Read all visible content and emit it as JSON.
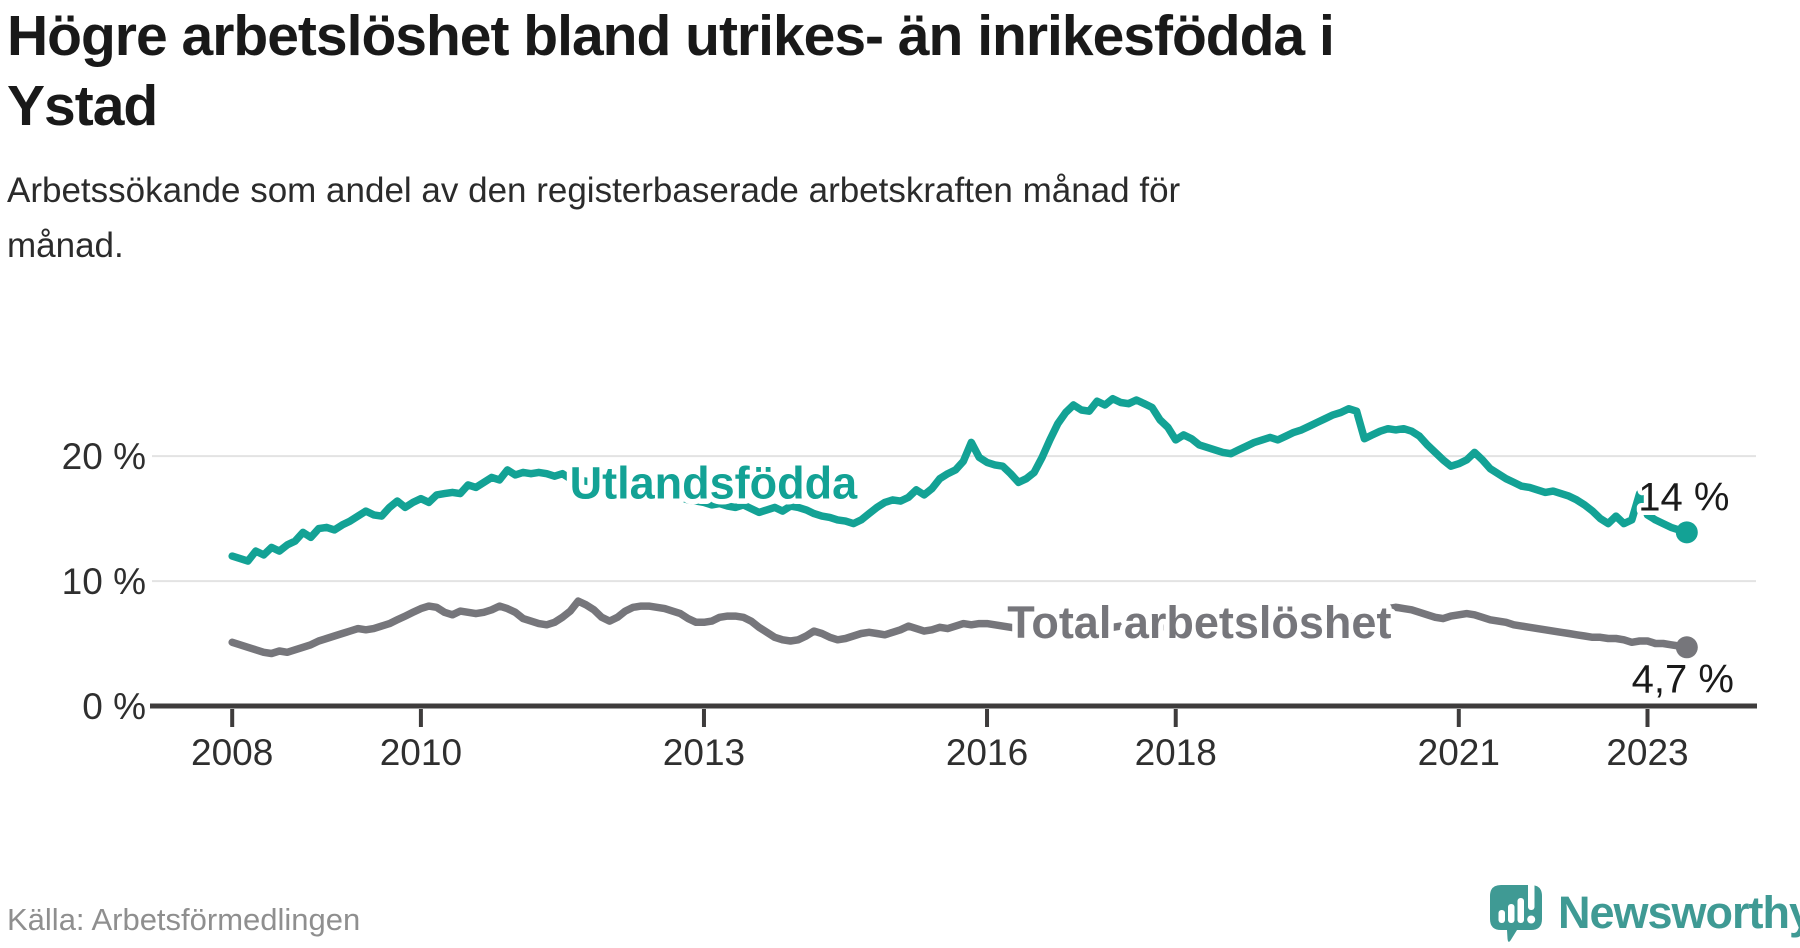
{
  "title": {
    "lines": [
      "Högre arbetslöshet bland utrikes- än inrikesfödda i",
      "Ystad"
    ]
  },
  "subtitle": {
    "lines": [
      "Arbetssökande som andel av den registerbaserade arbetskraften månad för",
      "månad."
    ]
  },
  "source": "Källa: Arbetsförmedlingen",
  "brand": {
    "name": "Newsworthy",
    "color": "#3f9a94"
  },
  "colors": {
    "foreign_line": "#13a295",
    "total_line": "#76767b",
    "axis": "#3e3c3c",
    "grid": "#e3e3e3",
    "tick_text": "#2f2f2f",
    "end_label_text": "#1a1a1a",
    "title_text": "#191919",
    "source_text": "#8f8f8f"
  },
  "chart_data": {
    "type": "line",
    "x_start_year": 2008,
    "x_months_per_step": 1,
    "xlim": [
      2007.15,
      2024.15
    ],
    "ylim": [
      0,
      29.3
    ],
    "grid": "horizontal",
    "legend": "inline-labels",
    "yticks": [
      {
        "value": 0,
        "label": "0 %"
      },
      {
        "value": 10,
        "label": "10 %"
      },
      {
        "value": 20,
        "label": "20 %"
      }
    ],
    "xticks": [
      {
        "value": 2008,
        "label": "2008"
      },
      {
        "value": 2010,
        "label": "2010"
      },
      {
        "value": 2013,
        "label": "2013"
      },
      {
        "value": 2016,
        "label": "2016"
      },
      {
        "value": 2018,
        "label": "2018"
      },
      {
        "value": 2021,
        "label": "2021"
      },
      {
        "value": 2023,
        "label": "2023"
      }
    ],
    "series": [
      {
        "id": "utlandsfodda",
        "name": "Utlandsfödda",
        "color": "#13a295",
        "label": {
          "text": "Utlandsfödda",
          "x": 2013.1,
          "y": 17.9
        },
        "end_label": "14 %",
        "end_label_offset": [
          -3,
          -36
        ],
        "values": [
          12.0,
          11.8,
          11.6,
          12.4,
          12.1,
          12.7,
          12.4,
          12.9,
          13.2,
          13.9,
          13.5,
          14.2,
          14.3,
          14.1,
          14.5,
          14.8,
          15.2,
          15.6,
          15.3,
          15.2,
          15.9,
          16.4,
          15.9,
          16.3,
          16.6,
          16.3,
          16.9,
          17.0,
          17.1,
          17.0,
          17.7,
          17.5,
          17.9,
          18.3,
          18.1,
          18.9,
          18.5,
          18.7,
          18.6,
          18.7,
          18.6,
          18.4,
          18.6,
          18.2,
          18.1,
          18.0,
          17.9,
          17.7,
          17.4,
          17.7,
          17.9,
          17.6,
          17.4,
          17.5,
          17.2,
          17.1,
          16.9,
          16.7,
          16.5,
          16.4,
          16.3,
          16.1,
          16.2,
          16.0,
          15.9,
          16.1,
          15.8,
          15.5,
          15.7,
          15.9,
          15.6,
          16.0,
          15.9,
          15.7,
          15.4,
          15.2,
          15.1,
          14.9,
          14.8,
          14.6,
          14.9,
          15.4,
          15.9,
          16.3,
          16.5,
          16.4,
          16.7,
          17.3,
          16.9,
          17.4,
          18.2,
          18.6,
          18.9,
          19.6,
          21.1,
          19.9,
          19.5,
          19.3,
          19.2,
          18.6,
          17.9,
          18.2,
          18.7,
          19.9,
          21.3,
          22.6,
          23.5,
          24.1,
          23.7,
          23.6,
          24.4,
          24.1,
          24.6,
          24.3,
          24.2,
          24.5,
          24.2,
          23.9,
          22.9,
          22.3,
          21.3,
          21.7,
          21.4,
          20.9,
          20.7,
          20.5,
          20.3,
          20.2,
          20.5,
          20.8,
          21.1,
          21.3,
          21.5,
          21.3,
          21.6,
          21.9,
          22.1,
          22.4,
          22.7,
          23.0,
          23.3,
          23.5,
          23.8,
          23.6,
          21.4,
          21.7,
          22.0,
          22.2,
          22.1,
          22.2,
          22.0,
          21.6,
          20.9,
          20.3,
          19.7,
          19.2,
          19.4,
          19.7,
          20.3,
          19.7,
          19.0,
          18.6,
          18.2,
          17.9,
          17.6,
          17.5,
          17.3,
          17.1,
          17.2,
          17.0,
          16.8,
          16.5,
          16.1,
          15.6,
          15.0,
          14.6,
          15.2,
          14.6,
          14.9,
          17.0,
          15.3,
          14.9,
          14.6,
          14.3,
          14.1,
          13.9
        ]
      },
      {
        "id": "total",
        "name": "Total arbetslöshet",
        "color": "#76767b",
        "label": {
          "text": "Total arbetslöshet",
          "x": 2018.25,
          "y": 6.72
        },
        "end_label": "4,7 %",
        "end_label_offset": [
          -4,
          31
        ],
        "values": [
          5.1,
          4.9,
          4.7,
          4.5,
          4.3,
          4.2,
          4.4,
          4.3,
          4.5,
          4.7,
          4.9,
          5.2,
          5.4,
          5.6,
          5.8,
          6.0,
          6.2,
          6.1,
          6.2,
          6.4,
          6.6,
          6.9,
          7.2,
          7.5,
          7.8,
          8.0,
          7.9,
          7.5,
          7.3,
          7.6,
          7.5,
          7.4,
          7.5,
          7.7,
          8.0,
          7.8,
          7.5,
          7.0,
          6.8,
          6.6,
          6.5,
          6.7,
          7.1,
          7.6,
          8.4,
          8.1,
          7.7,
          7.1,
          6.8,
          7.1,
          7.6,
          7.9,
          8.0,
          8.0,
          7.9,
          7.8,
          7.6,
          7.4,
          7.0,
          6.7,
          6.7,
          6.8,
          7.1,
          7.2,
          7.2,
          7.1,
          6.8,
          6.3,
          5.9,
          5.5,
          5.3,
          5.2,
          5.3,
          5.6,
          6.0,
          5.8,
          5.5,
          5.3,
          5.4,
          5.6,
          5.8,
          5.9,
          5.8,
          5.7,
          5.9,
          6.1,
          6.4,
          6.2,
          6.0,
          6.1,
          6.3,
          6.2,
          6.4,
          6.6,
          6.5,
          6.6,
          6.6,
          6.5,
          6.4,
          6.3,
          6.2,
          6.3,
          6.4,
          6.5,
          6.6,
          6.6,
          6.7,
          6.7,
          6.6,
          6.5,
          6.4,
          6.4,
          6.3,
          6.4,
          6.5,
          6.6,
          6.6,
          6.5,
          6.4,
          6.3,
          6.2,
          6.1,
          6.0,
          6.0,
          5.9,
          6.0,
          6.1,
          6.2,
          6.1,
          6.0,
          5.9,
          5.9,
          6.0,
          6.1,
          6.2,
          6.3,
          6.4,
          6.5,
          6.7,
          6.8,
          6.9,
          7.0,
          7.1,
          7.2,
          7.1,
          7.2,
          7.5,
          7.8,
          7.9,
          7.8,
          7.7,
          7.5,
          7.3,
          7.1,
          7.0,
          7.2,
          7.3,
          7.4,
          7.3,
          7.1,
          6.9,
          6.8,
          6.7,
          6.5,
          6.4,
          6.3,
          6.2,
          6.1,
          6.0,
          5.9,
          5.8,
          5.7,
          5.6,
          5.5,
          5.5,
          5.4,
          5.4,
          5.3,
          5.1,
          5.2,
          5.2,
          5.0,
          5.0,
          4.9,
          4.8,
          4.7
        ]
      }
    ]
  }
}
